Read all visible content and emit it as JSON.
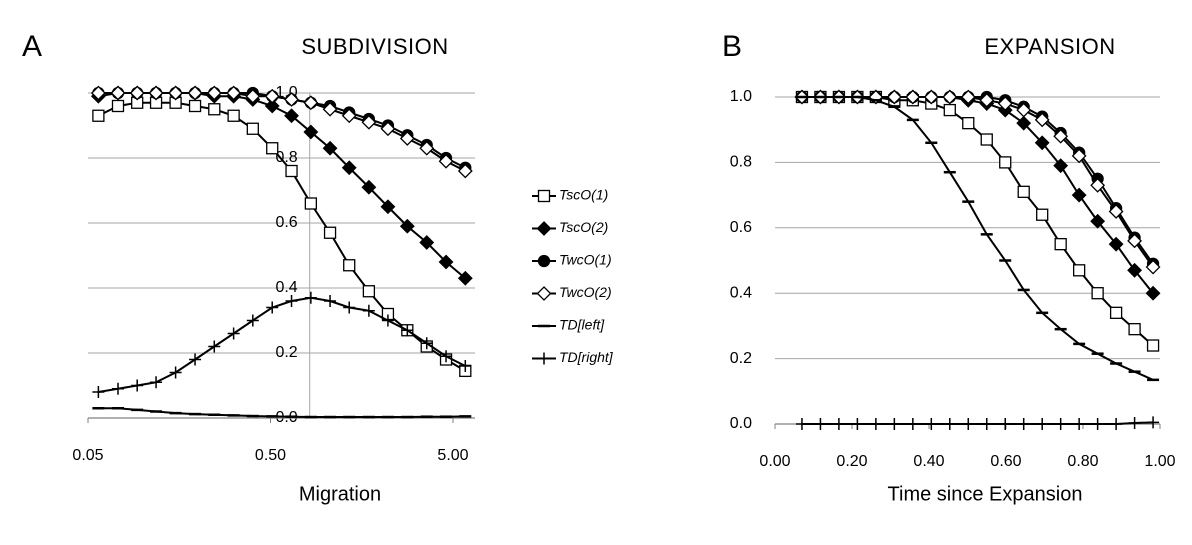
{
  "chart_data": [
    {
      "type": "line",
      "panel": "A",
      "title": "SUBDIVISION",
      "xlabel": "Migration",
      "xscale": "log",
      "xlim": [
        0.05,
        6.6
      ],
      "xticks": [
        {
          "value": 0.05,
          "label": "0.05"
        },
        {
          "value": 0.5,
          "label": "0.50"
        },
        {
          "value": 5,
          "label": "5.00"
        }
      ],
      "ylim": [
        0,
        1
      ],
      "yticks": [
        {
          "value": 0,
          "label": "0.0"
        },
        {
          "value": 0.2,
          "label": "0.2"
        },
        {
          "value": 0.4,
          "label": "0.4"
        },
        {
          "value": 0.6,
          "label": "0.6"
        },
        {
          "value": 0.8,
          "label": "0.8"
        },
        {
          "value": 1,
          "label": "1.0"
        }
      ],
      "grid": true,
      "y_axis_cross": 0.82,
      "x": [
        0.057,
        0.073,
        0.093,
        0.118,
        0.151,
        0.193,
        0.246,
        0.314,
        0.4,
        0.511,
        0.652,
        0.832,
        1.06,
        1.35,
        1.73,
        2.2,
        2.81,
        3.59,
        4.58,
        5.84
      ],
      "series": [
        {
          "name": "TscO(1)",
          "color": "#000000",
          "marker": "square-open",
          "values": [
            0.93,
            0.96,
            0.97,
            0.97,
            0.97,
            0.96,
            0.95,
            0.93,
            0.89,
            0.83,
            0.76,
            0.66,
            0.57,
            0.47,
            0.39,
            0.32,
            0.27,
            0.22,
            0.18,
            0.145
          ]
        },
        {
          "name": "TscO(2)",
          "color": "#000000",
          "marker": "diamond-filled",
          "values": [
            0.99,
            1,
            1,
            1,
            1,
            1,
            0.99,
            0.99,
            0.98,
            0.96,
            0.93,
            0.88,
            0.83,
            0.77,
            0.71,
            0.65,
            0.59,
            0.54,
            0.48,
            0.43
          ]
        },
        {
          "name": "TwcO(1)",
          "color": "#000000",
          "marker": "circle-filled",
          "values": [
            1,
            1,
            1,
            1,
            1,
            1,
            1,
            1,
            1,
            0.99,
            0.98,
            0.97,
            0.96,
            0.94,
            0.92,
            0.9,
            0.87,
            0.84,
            0.8,
            0.77
          ]
        },
        {
          "name": "TwcO(2)",
          "color": "#000000",
          "marker": "diamond-open",
          "values": [
            1,
            1,
            1,
            1,
            1,
            1,
            1,
            1,
            0.99,
            0.99,
            0.98,
            0.97,
            0.95,
            0.93,
            0.91,
            0.89,
            0.86,
            0.83,
            0.79,
            0.76
          ]
        },
        {
          "name": "TD[left]",
          "color": "#000000",
          "marker": "dash",
          "values": [
            0.03,
            0.03,
            0.025,
            0.02,
            0.015,
            0.012,
            0.01,
            0.008,
            0.006,
            0.005,
            0.004,
            0.003,
            0.003,
            0.003,
            0.003,
            0.003,
            0.003,
            0.004,
            0.004,
            0.005
          ]
        },
        {
          "name": "TD[right]",
          "color": "#000000",
          "marker": "cross",
          "values": [
            0.08,
            0.09,
            0.1,
            0.11,
            0.14,
            0.18,
            0.22,
            0.26,
            0.3,
            0.34,
            0.36,
            0.37,
            0.36,
            0.34,
            0.33,
            0.3,
            0.27,
            0.23,
            0.19,
            0.16
          ]
        }
      ]
    },
    {
      "type": "line",
      "panel": "B",
      "title": "EXPANSION",
      "xlabel": "Time since Expansion",
      "xlim": [
        0,
        1
      ],
      "xticks": [
        {
          "value": 0,
          "label": "0.00"
        },
        {
          "value": 0.2,
          "label": "0.20"
        },
        {
          "value": 0.4,
          "label": "0.40"
        },
        {
          "value": 0.6,
          "label": "0.60"
        },
        {
          "value": 0.8,
          "label": "0.80"
        },
        {
          "value": 1,
          "label": "1.00"
        }
      ],
      "ylim": [
        0,
        1
      ],
      "yticks": [
        {
          "value": 0,
          "label": "0.0"
        },
        {
          "value": 0.2,
          "label": "0.2"
        },
        {
          "value": 0.4,
          "label": "0.4"
        },
        {
          "value": 0.6,
          "label": "0.6"
        },
        {
          "value": 0.8,
          "label": "0.8"
        },
        {
          "value": 1,
          "label": "1.0"
        }
      ],
      "grid": true,
      "x": [
        0.07,
        0.118,
        0.166,
        0.214,
        0.262,
        0.31,
        0.358,
        0.406,
        0.454,
        0.502,
        0.55,
        0.598,
        0.646,
        0.694,
        0.742,
        0.79,
        0.838,
        0.886,
        0.934,
        0.982
      ],
      "series": [
        {
          "color": "#000000",
          "marker": "square-open",
          "values": [
            1,
            1,
            1,
            1,
            1,
            0.99,
            0.99,
            0.98,
            0.96,
            0.92,
            0.87,
            0.8,
            0.71,
            0.64,
            0.55,
            0.47,
            0.4,
            0.34,
            0.29,
            0.24
          ]
        },
        {
          "color": "#000000",
          "marker": "diamond-filled",
          "values": [
            1,
            1,
            1,
            1,
            1,
            1,
            1,
            1,
            1,
            0.99,
            0.98,
            0.96,
            0.92,
            0.86,
            0.79,
            0.7,
            0.62,
            0.55,
            0.47,
            0.4
          ]
        },
        {
          "color": "#000000",
          "marker": "circle-filled",
          "values": [
            1,
            1,
            1,
            1,
            1,
            1,
            1,
            1,
            1,
            1,
            1,
            0.99,
            0.97,
            0.94,
            0.89,
            0.83,
            0.75,
            0.66,
            0.57,
            0.49
          ]
        },
        {
          "color": "#000000",
          "marker": "diamond-open",
          "values": [
            1,
            1,
            1,
            1,
            1,
            1,
            1,
            1,
            1,
            1,
            0.99,
            0.98,
            0.96,
            0.93,
            0.88,
            0.82,
            0.73,
            0.65,
            0.56,
            0.48
          ]
        },
        {
          "color": "#000000",
          "marker": "dash",
          "values": [
            1,
            1,
            1,
            1,
            0.99,
            0.97,
            0.93,
            0.86,
            0.77,
            0.68,
            0.58,
            0.5,
            0.41,
            0.34,
            0.29,
            0.245,
            0.215,
            0.185,
            0.16,
            0.135
          ]
        },
        {
          "color": "#000000",
          "marker": "cross",
          "values": [
            0,
            0,
            0,
            0,
            0,
            0,
            0,
            0,
            0,
            0,
            0,
            0,
            0,
            0,
            0,
            0,
            0,
            0,
            0.003,
            0.005
          ]
        }
      ]
    }
  ]
}
